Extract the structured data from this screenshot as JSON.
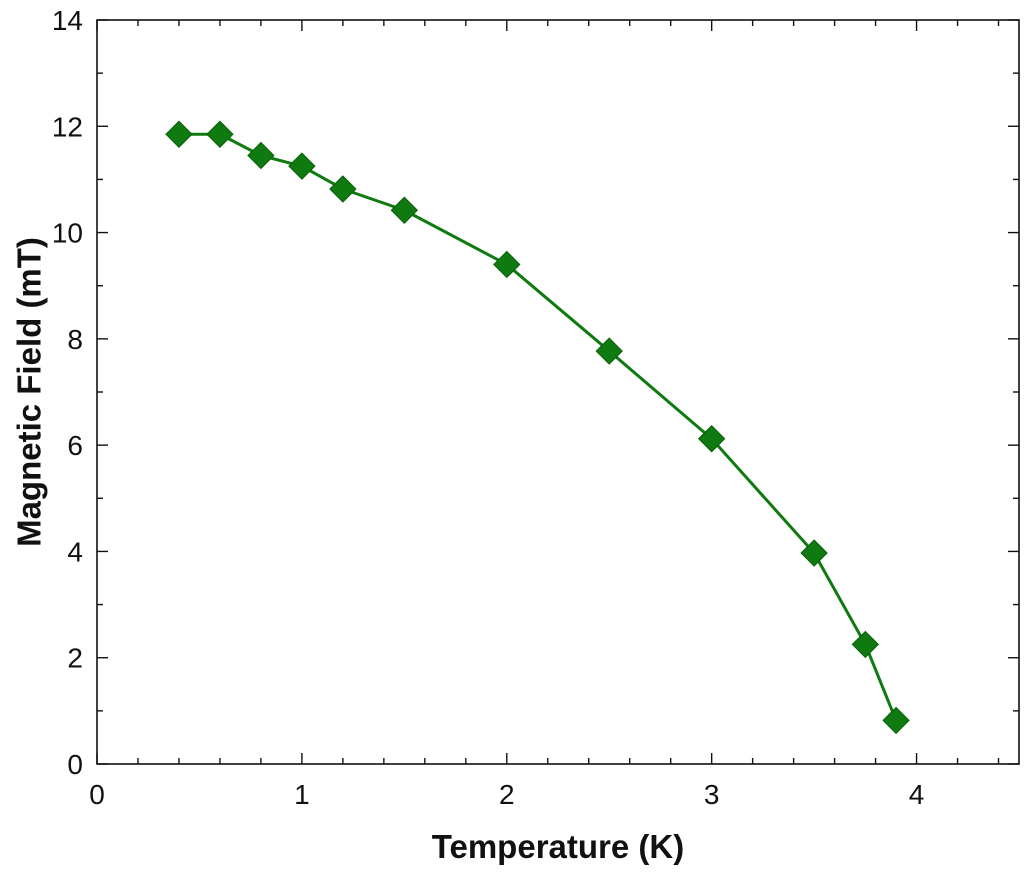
{
  "chart_data": {
    "type": "line",
    "title": "",
    "xlabel": "Temperature (K)",
    "ylabel": "Magnetic Field (mT)",
    "xlim": [
      0,
      4.5
    ],
    "ylim": [
      0,
      14
    ],
    "x_ticks": [
      0,
      1,
      2,
      3,
      4
    ],
    "y_ticks": [
      0,
      2,
      4,
      6,
      8,
      10,
      12,
      14
    ],
    "x_tick_labels": [
      "0",
      "1",
      "2",
      "3",
      "4"
    ],
    "y_tick_labels": [
      "0",
      "2",
      "4",
      "6",
      "8",
      "10",
      "12",
      "14"
    ],
    "grid": false,
    "legend": "none",
    "marker": "diamond",
    "color": "#0f7a0f",
    "series": [
      {
        "x": [
          0.4,
          0.6,
          0.8,
          1.0,
          1.2,
          1.5,
          2.0,
          2.5,
          3.0,
          3.5,
          3.75,
          3.9
        ],
        "y": [
          11.85,
          11.85,
          11.45,
          11.25,
          10.82,
          10.42,
          9.4,
          7.77,
          6.12,
          3.97,
          2.25,
          0.82
        ]
      }
    ]
  }
}
